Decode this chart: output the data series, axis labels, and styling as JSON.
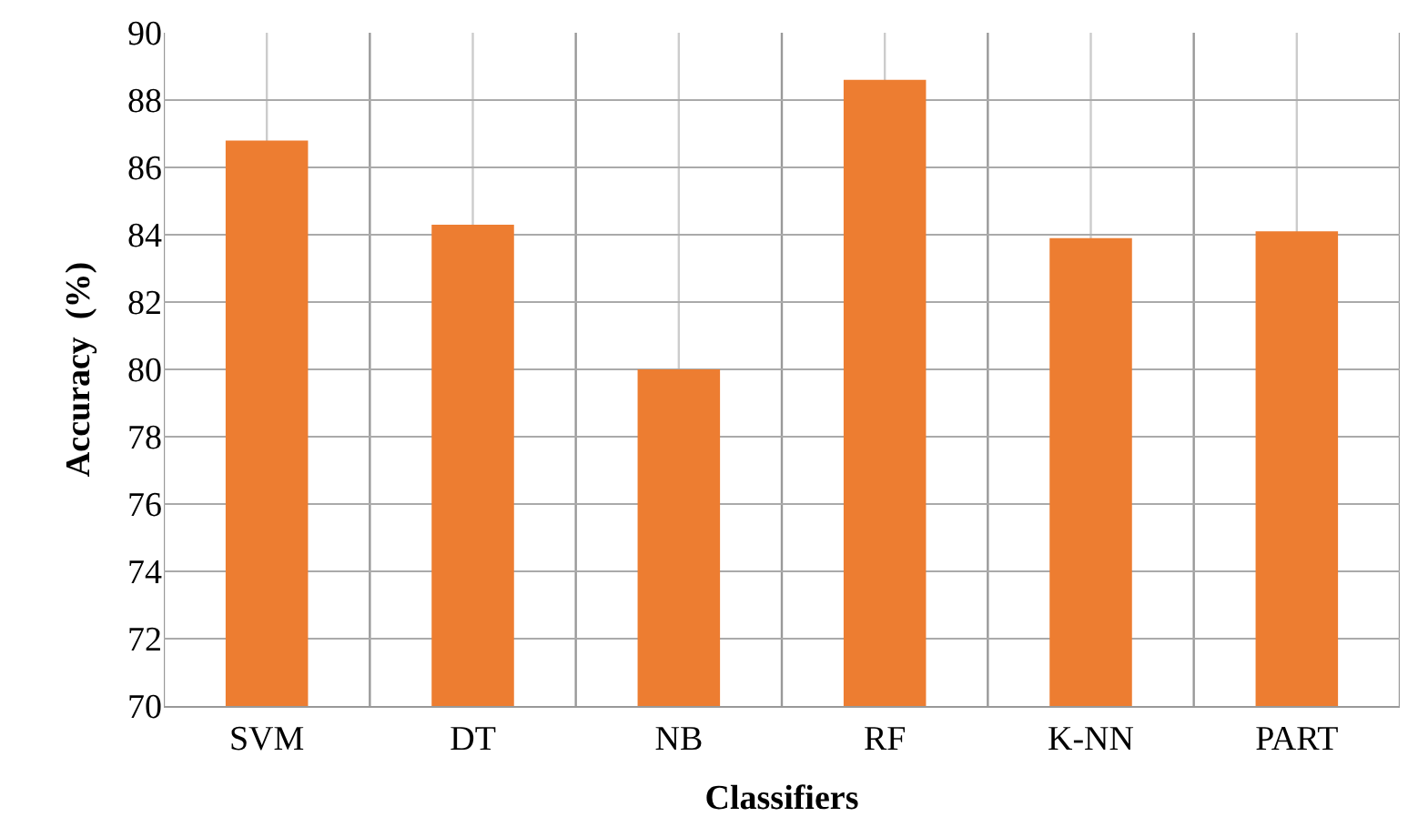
{
  "chart_data": {
    "type": "bar",
    "xlabel": "Classifiers",
    "ylabel": "Accuracy  (%)",
    "categories": [
      "SVM",
      "DT",
      "NB",
      "RF",
      "K-NN",
      "PART"
    ],
    "values": [
      86.8,
      84.3,
      80.0,
      88.6,
      83.9,
      84.1
    ],
    "color": "#ed7d31",
    "ylim": [
      70,
      90
    ],
    "yticks": [
      70,
      72,
      74,
      76,
      78,
      80,
      82,
      84,
      86,
      88,
      90
    ],
    "grid": true,
    "legend": false
  }
}
